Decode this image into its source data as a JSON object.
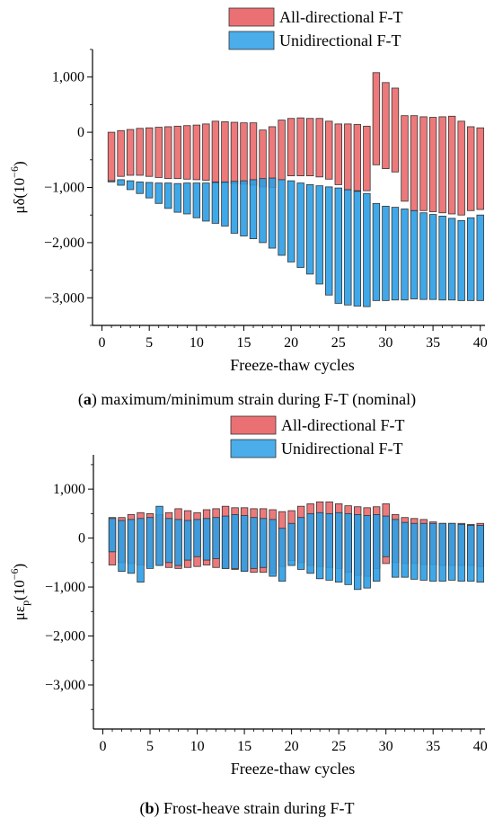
{
  "chart_data": [
    {
      "type": "bar",
      "panel": "a",
      "caption_letter": "a",
      "caption_text": " maximum/minimum strain during F-T (nominal)",
      "xlabel": "Freeze-thaw cycles",
      "ylabel_main": "μδ(10",
      "ylabel_sup": "−6",
      "ylabel_end": ")",
      "xlim": [
        -1,
        40.5
      ],
      "ylim": [
        -3500,
        1500
      ],
      "xticks": [
        0,
        5,
        10,
        15,
        20,
        25,
        30,
        35,
        40
      ],
      "xtick_labels": [
        "0",
        "5",
        "10",
        "15",
        "20",
        "25",
        "30",
        "35",
        "40"
      ],
      "yticks": [
        1000,
        0,
        -1000,
        -2000,
        -3000
      ],
      "ytick_labels": [
        "1,000",
        "0",
        "−1,000",
        "−2,000",
        "−3,000"
      ],
      "legend_position": "top-right",
      "series": [
        {
          "name": "All-directional F-T",
          "color": "#e8575a",
          "x": [
            1,
            2,
            3,
            4,
            5,
            6,
            7,
            8,
            9,
            10,
            11,
            12,
            13,
            14,
            15,
            16,
            17,
            18,
            19,
            20,
            21,
            22,
            23,
            24,
            25,
            26,
            27,
            28,
            29,
            30,
            31,
            32,
            33,
            34,
            35,
            36,
            37,
            38,
            39,
            40
          ],
          "max": [
            0,
            30,
            50,
            70,
            80,
            90,
            100,
            110,
            120,
            130,
            150,
            200,
            190,
            180,
            170,
            170,
            40,
            100,
            220,
            250,
            260,
            250,
            250,
            200,
            150,
            150,
            140,
            110,
            1080,
            900,
            800,
            300,
            300,
            280,
            270,
            280,
            290,
            200,
            100,
            80
          ],
          "min": [
            -880,
            -800,
            -780,
            -780,
            -800,
            -820,
            -840,
            -840,
            -850,
            -860,
            -870,
            -900,
            -920,
            -930,
            -940,
            -960,
            -990,
            -1000,
            -860,
            -790,
            -790,
            -790,
            -810,
            -850,
            -950,
            -1050,
            -1060,
            -1060,
            -590,
            -660,
            -720,
            -1250,
            -1420,
            -1420,
            -1440,
            -1460,
            -1480,
            -1500,
            -1420,
            -1400
          ]
        },
        {
          "name": "Unidirectional F-T",
          "color": "#2b9fe6",
          "x": [
            1,
            2,
            3,
            4,
            5,
            6,
            7,
            8,
            9,
            10,
            11,
            12,
            13,
            14,
            15,
            16,
            17,
            18,
            19,
            20,
            21,
            22,
            23,
            24,
            25,
            26,
            27,
            28,
            29,
            30,
            31,
            32,
            33,
            34,
            35,
            36,
            37,
            38,
            39,
            40
          ],
          "max": [
            -880,
            -860,
            -880,
            -900,
            -910,
            -920,
            -920,
            -930,
            -920,
            -920,
            -920,
            -910,
            -900,
            -890,
            -880,
            -860,
            -840,
            -830,
            -860,
            -880,
            -920,
            -950,
            -970,
            -990,
            -1010,
            -1040,
            -1070,
            -1110,
            -1290,
            -1340,
            -1360,
            -1390,
            -1420,
            -1460,
            -1490,
            -1520,
            -1560,
            -1600,
            -1550,
            -1500
          ],
          "min": [
            -900,
            -960,
            -1040,
            -1110,
            -1190,
            -1290,
            -1380,
            -1450,
            -1480,
            -1550,
            -1610,
            -1650,
            -1700,
            -1830,
            -1880,
            -1930,
            -2000,
            -2100,
            -2230,
            -2350,
            -2450,
            -2570,
            -2750,
            -2950,
            -3100,
            -3130,
            -3150,
            -3160,
            -3050,
            -3050,
            -3040,
            -3040,
            -3020,
            -3030,
            -3030,
            -3040,
            -3040,
            -3050,
            -3050,
            -3050
          ]
        }
      ]
    },
    {
      "type": "bar",
      "panel": "b",
      "caption_letter": "b",
      "caption_text": " Frost-heave strain during F-T",
      "xlabel": "Freeze-thaw cycles",
      "ylabel_main": "με",
      "ylabel_sub": "p",
      "ylabel_sup": "(10",
      "ylabel_sup2": "−6",
      "ylabel_end": ")",
      "xlim": [
        -1,
        40.5
      ],
      "ylim": [
        -3900,
        1700
      ],
      "xticks": [
        0,
        5,
        10,
        15,
        20,
        25,
        30,
        35,
        40
      ],
      "xtick_labels": [
        "0",
        "5",
        "10",
        "15",
        "20",
        "25",
        "30",
        "35",
        "40"
      ],
      "yticks": [
        1000,
        0,
        -1000,
        -2000,
        -3000
      ],
      "ytick_labels": [
        "1,000",
        "0",
        "−1,000",
        "−2,000",
        "−3,000"
      ],
      "legend_position": "top-right",
      "series": [
        {
          "name": "All-directional F-T",
          "color": "#e8575a",
          "x": [
            1,
            2,
            3,
            4,
            5,
            6,
            7,
            8,
            9,
            10,
            11,
            12,
            13,
            14,
            15,
            16,
            17,
            18,
            19,
            20,
            21,
            22,
            23,
            24,
            25,
            26,
            27,
            28,
            29,
            30,
            31,
            32,
            33,
            34,
            35,
            36,
            37,
            38,
            39,
            40
          ],
          "max": [
            420,
            420,
            480,
            520,
            500,
            480,
            520,
            600,
            560,
            520,
            580,
            600,
            650,
            620,
            620,
            600,
            600,
            580,
            540,
            560,
            650,
            700,
            740,
            740,
            700,
            660,
            640,
            620,
            640,
            700,
            480,
            420,
            400,
            380,
            330,
            300,
            300,
            300,
            280,
            300
          ],
          "min": [
            -550,
            -500,
            -520,
            -550,
            -580,
            -550,
            -600,
            -620,
            -600,
            -580,
            -550,
            -600,
            -620,
            -640,
            -660,
            -700,
            -700,
            -720,
            -580,
            -460,
            -500,
            -560,
            -580,
            -600,
            -620,
            -700,
            -760,
            -780,
            -620,
            -520,
            -500,
            -520,
            -520,
            -540,
            -540,
            -560,
            -560,
            -560,
            -560,
            -580
          ]
        },
        {
          "name": "Unidirectional F-T",
          "color": "#2b9fe6",
          "x": [
            1,
            2,
            3,
            4,
            5,
            6,
            7,
            8,
            9,
            10,
            11,
            12,
            13,
            14,
            15,
            16,
            17,
            18,
            19,
            20,
            21,
            22,
            23,
            24,
            25,
            26,
            27,
            28,
            29,
            30,
            31,
            32,
            33,
            34,
            35,
            36,
            37,
            38,
            39,
            40
          ],
          "max": [
            400,
            360,
            380,
            400,
            420,
            650,
            400,
            380,
            360,
            380,
            400,
            420,
            450,
            480,
            460,
            420,
            400,
            380,
            200,
            300,
            420,
            500,
            520,
            500,
            520,
            500,
            480,
            460,
            480,
            450,
            380,
            320,
            300,
            300,
            300,
            300,
            300,
            280,
            260,
            260
          ],
          "min": [
            -280,
            -680,
            -720,
            -900,
            -620,
            -560,
            -500,
            -560,
            -450,
            -380,
            -450,
            -420,
            -620,
            -620,
            -680,
            -620,
            -600,
            -780,
            -880,
            -560,
            -640,
            -720,
            -830,
            -860,
            -900,
            -950,
            -1050,
            -1020,
            -880,
            -380,
            -800,
            -800,
            -840,
            -860,
            -880,
            -880,
            -860,
            -880,
            -880,
            -900
          ]
        }
      ]
    }
  ]
}
